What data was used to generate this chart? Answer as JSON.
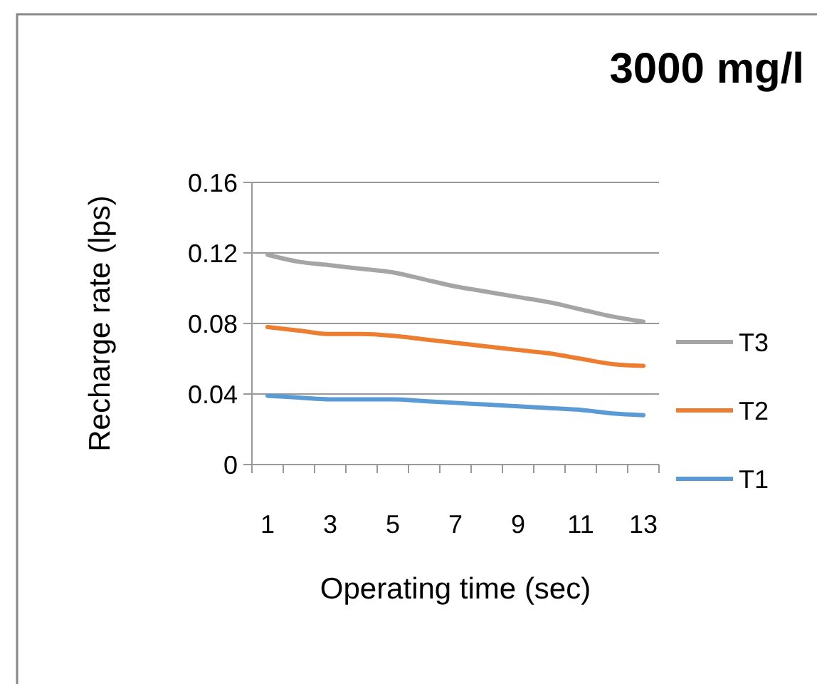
{
  "chart_data": {
    "type": "line",
    "title": "3000 mg/l",
    "xlabel": "Operating time (sec)",
    "ylabel": "Recharge rate (lps)",
    "x": [
      1,
      2,
      3,
      4,
      5,
      6,
      7,
      8,
      9,
      10,
      11,
      12,
      13
    ],
    "xlim": [
      0.5,
      13.5
    ],
    "xticks": [
      1,
      3,
      5,
      7,
      9,
      11,
      13,
      {
        "value": 0.5,
        "label": null
      },
      {
        "value": 1.5,
        "label": null
      },
      {
        "value": 2.5,
        "label": null
      },
      {
        "value": 3.5,
        "label": null
      },
      {
        "value": 4.5,
        "label": null
      },
      {
        "value": 5.5,
        "label": null
      },
      {
        "value": 6.5,
        "label": null
      },
      {
        "value": 7.5,
        "label": null
      },
      {
        "value": 8.5,
        "label": null
      },
      {
        "value": 9.5,
        "label": null
      },
      {
        "value": 10.5,
        "label": null
      },
      {
        "value": 11.5,
        "label": null
      },
      {
        "value": 12.5,
        "label": null
      },
      {
        "value": 13.5,
        "label": null
      }
    ],
    "series": [
      {
        "name": "T1",
        "color": "#5b9bd5",
        "values": [
          0.039,
          0.038,
          0.037,
          0.037,
          0.037,
          0.036,
          0.035,
          0.034,
          0.033,
          0.032,
          0.031,
          0.029,
          0.028
        ]
      },
      {
        "name": "T2",
        "color": "#ed7d31",
        "values": [
          0.078,
          0.076,
          0.074,
          0.074,
          0.073,
          0.071,
          0.069,
          0.067,
          0.065,
          0.063,
          0.06,
          0.057,
          0.056
        ]
      },
      {
        "name": "T3",
        "color": "#a5a5a5",
        "values": [
          0.119,
          0.115,
          0.113,
          0.111,
          0.109,
          0.105,
          0.101,
          0.098,
          0.095,
          0.092,
          0.088,
          0.084,
          0.081
        ]
      }
    ],
    "ylim": [
      0,
      0.16
    ],
    "yticks": [
      0,
      0.04,
      0.08,
      0.12,
      0.16
    ],
    "grid": "y",
    "legend": "right",
    "marker": "none",
    "line_style": "solid"
  }
}
